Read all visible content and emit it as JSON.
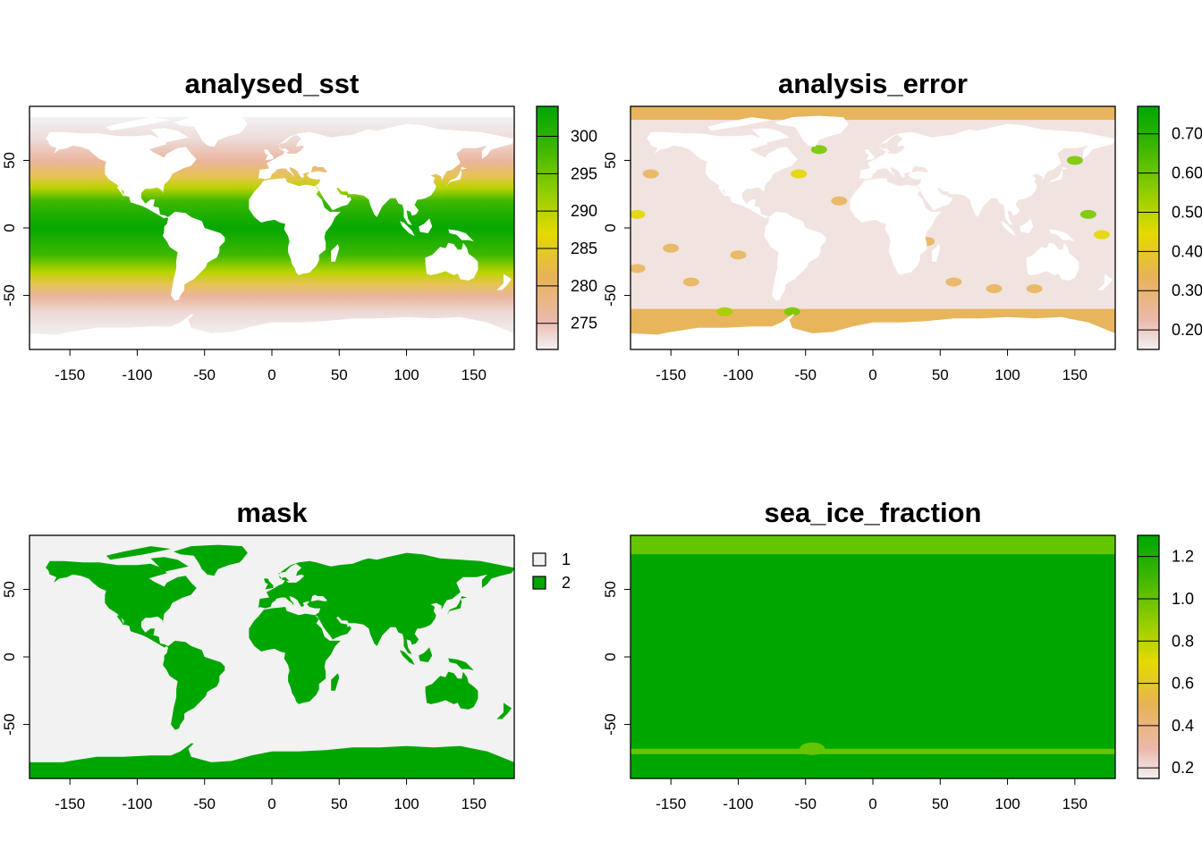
{
  "panels": [
    {
      "id": "analysed_sst",
      "title": "analysed_sst",
      "x_ticks": [
        "-150",
        "-100",
        "-50",
        "0",
        "50",
        "100",
        "150"
      ],
      "y_ticks": [
        "-50",
        "0",
        "50"
      ],
      "legend": {
        "type": "continuous",
        "labels": [
          "275",
          "280",
          "285",
          "290",
          "295",
          "300"
        ],
        "range": [
          271.5,
          304
        ],
        "values": [
          275,
          280,
          285,
          290,
          295,
          300
        ]
      },
      "palette": "terrain",
      "ocean_colors": [
        "#f2f2f2",
        "#ebb9ac",
        "#e9b25c",
        "#e3d600",
        "#78c800",
        "#21b300",
        "#00a600"
      ]
    },
    {
      "id": "analysis_error",
      "title": "analysis_error",
      "x_ticks": [
        "-150",
        "-100",
        "-50",
        "0",
        "50",
        "100",
        "150"
      ],
      "y_ticks": [
        "-50",
        "0",
        "50"
      ],
      "legend": {
        "type": "continuous",
        "labels": [
          "0.20",
          "0.30",
          "0.40",
          "0.50",
          "0.60",
          "0.70"
        ],
        "range": [
          0.15,
          0.77
        ],
        "values": [
          0.2,
          0.3,
          0.4,
          0.5,
          0.6,
          0.7
        ]
      },
      "palette": "terrain"
    },
    {
      "id": "mask",
      "title": "mask",
      "x_ticks": [
        "-150",
        "-100",
        "-50",
        "0",
        "50",
        "100",
        "150"
      ],
      "y_ticks": [
        "-50",
        "0",
        "50"
      ],
      "legend": {
        "type": "categorical",
        "items": [
          {
            "label": "1",
            "color": "#f2f2f2"
          },
          {
            "label": "2",
            "color": "#00a600"
          }
        ]
      }
    },
    {
      "id": "sea_ice_fraction",
      "title": "sea_ice_fraction",
      "x_ticks": [
        "-150",
        "-100",
        "-50",
        "0",
        "50",
        "100",
        "150"
      ],
      "y_ticks": [
        "-50",
        "0",
        "50"
      ],
      "legend": {
        "type": "continuous",
        "labels": [
          "0.2",
          "0.4",
          "0.6",
          "0.8",
          "1.0",
          "1.2"
        ],
        "range": [
          0.15,
          1.3
        ],
        "values": [
          0.2,
          0.4,
          0.6,
          0.8,
          1.0,
          1.2
        ]
      },
      "palette": "terrain"
    }
  ],
  "colors": {
    "land": "#ffffff",
    "ocean_flat": "#00a600",
    "ice_lightgreen": "#63c600",
    "mask_water": "#f2f2f2",
    "mask_land": "#00a600",
    "error_tan": "#e8b55d",
    "error_pale": "#f1e3e0"
  }
}
